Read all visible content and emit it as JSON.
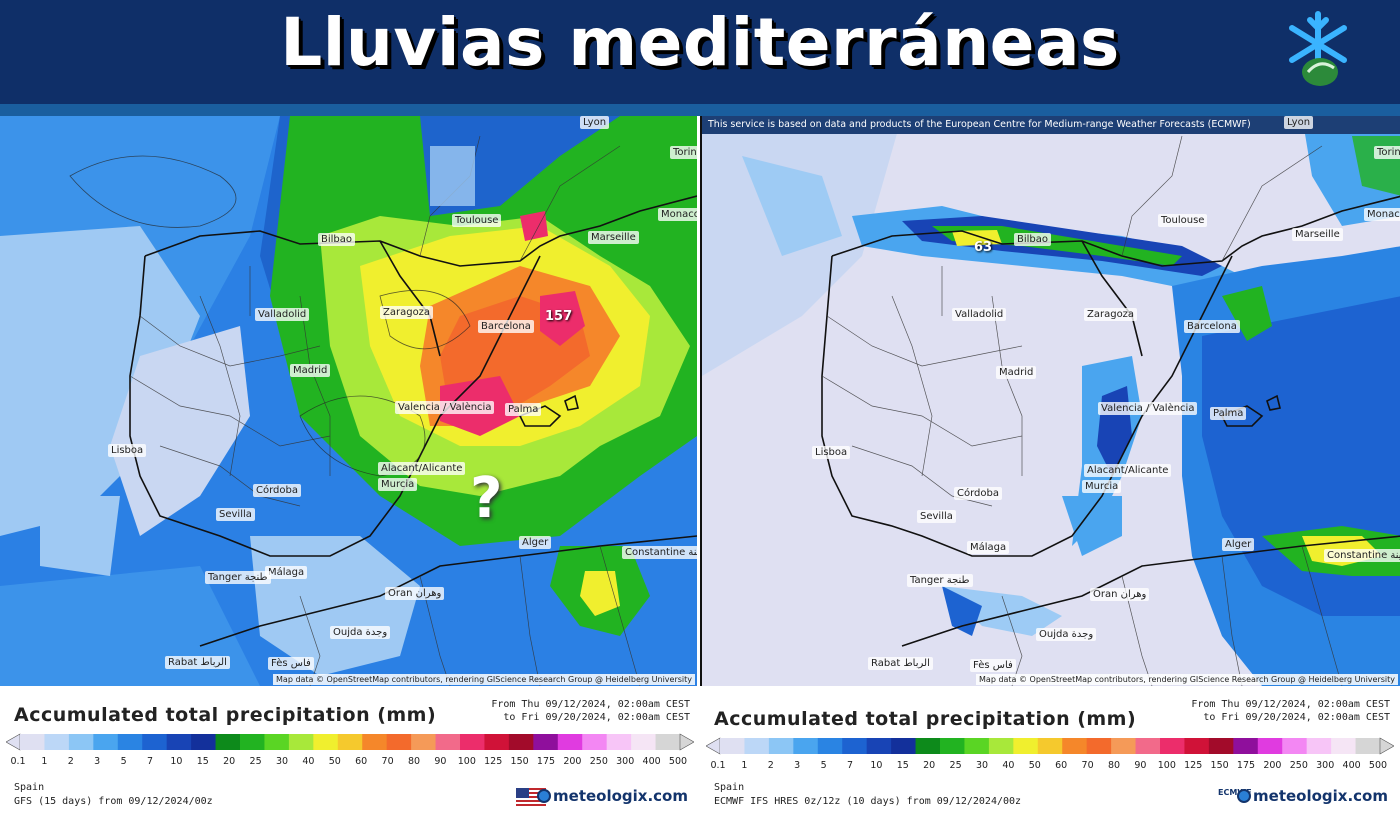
{
  "header": {
    "title": "Lluvias mediterráneas",
    "logo_icon": "snowflake-logo-icon"
  },
  "left_map": {
    "max_label": "157",
    "question_mark": "?",
    "cities": [
      "Toulouse",
      "Marseille",
      "Monaco",
      "Torin",
      "Lyon",
      "Bilbao",
      "Zaragoza",
      "Barcelona",
      "Valladolid",
      "Madrid",
      "Valencia / València",
      "Palma",
      "Alacant/Alicante",
      "Murcia",
      "Lisboa",
      "Córdoba",
      "Sevilla",
      "Málaga",
      "Tanger طنجة",
      "Alger",
      "Constantine قسنطينة",
      "Oran وهران",
      "Oujda وجدة",
      "Rabat الرباط",
      "Fès فاس"
    ],
    "attribution": "Map data © OpenStreetMap contributors, rendering GIScience Research Group @ Heidelberg University"
  },
  "right_map": {
    "notice": "This service is based on data and products of the European Centre for Medium-range Weather Forecasts (ECMWF)",
    "max_label": "63",
    "cities": [
      "Toulouse",
      "Marseille",
      "Monaco",
      "Torin",
      "Lyon",
      "Bilbao",
      "Zaragoza",
      "Barcelona",
      "Valladolid",
      "Madrid",
      "Valencia / València",
      "Palma",
      "Alacant/Alicante",
      "Murcia",
      "Lisboa",
      "Córdoba",
      "Sevilla",
      "Málaga",
      "Tanger طنجة",
      "Alger",
      "Constantine قسنطينة",
      "Oran وهران",
      "Oujda وجدة",
      "Rabat الرباط",
      "Fès فاس"
    ],
    "attribution": "Map data © OpenStreetMap contributors, rendering GIScience Research Group @ Heidelberg University"
  },
  "legend_left": {
    "title": "Accumulated total precipitation (mm)",
    "period_from": "From Thu 09/12/2024, 02:00am CEST",
    "period_to": "to Fri 09/20/2024, 02:00am CEST",
    "region": "Spain",
    "model": "GFS (15 days) from 09/12/2024/00z",
    "brand": "meteologix.com",
    "flag_icon": "us-flag-icon"
  },
  "legend_right": {
    "title": "Accumulated total precipitation (mm)",
    "period_from": "From Thu 09/12/2024, 02:00am CEST",
    "period_to": "to Fri 09/20/2024, 02:00am CEST",
    "region": "Spain",
    "model": "ECMWF IFS HRES 0z/12z (10 days) from 09/12/2024/00z",
    "brand": "meteologix.com",
    "ecmwf_label": "ECMWF"
  },
  "scale": {
    "ticks": [
      "0.1",
      "1",
      "2",
      "3",
      "5",
      "7",
      "10",
      "15",
      "20",
      "25",
      "30",
      "40",
      "50",
      "60",
      "70",
      "80",
      "90",
      "100",
      "125",
      "150",
      "175",
      "200",
      "250",
      "300",
      "400",
      "500"
    ],
    "colors": [
      "#dfe0f2",
      "#bcd7f7",
      "#8cc6f5",
      "#4aa5ef",
      "#2a84e3",
      "#1d63d1",
      "#1844b5",
      "#13309b",
      "#0d8a1b",
      "#22b321",
      "#5ad524",
      "#a8e83a",
      "#f0ef2e",
      "#f5c92d",
      "#f5872a",
      "#f36a2c",
      "#f59a58",
      "#f26a8a",
      "#ec2d6b",
      "#d01238",
      "#a20b2a",
      "#8f0f9c",
      "#e03be0",
      "#f387f3",
      "#f7c5f7",
      "#f5e5f5",
      "#d6d6d6"
    ]
  }
}
